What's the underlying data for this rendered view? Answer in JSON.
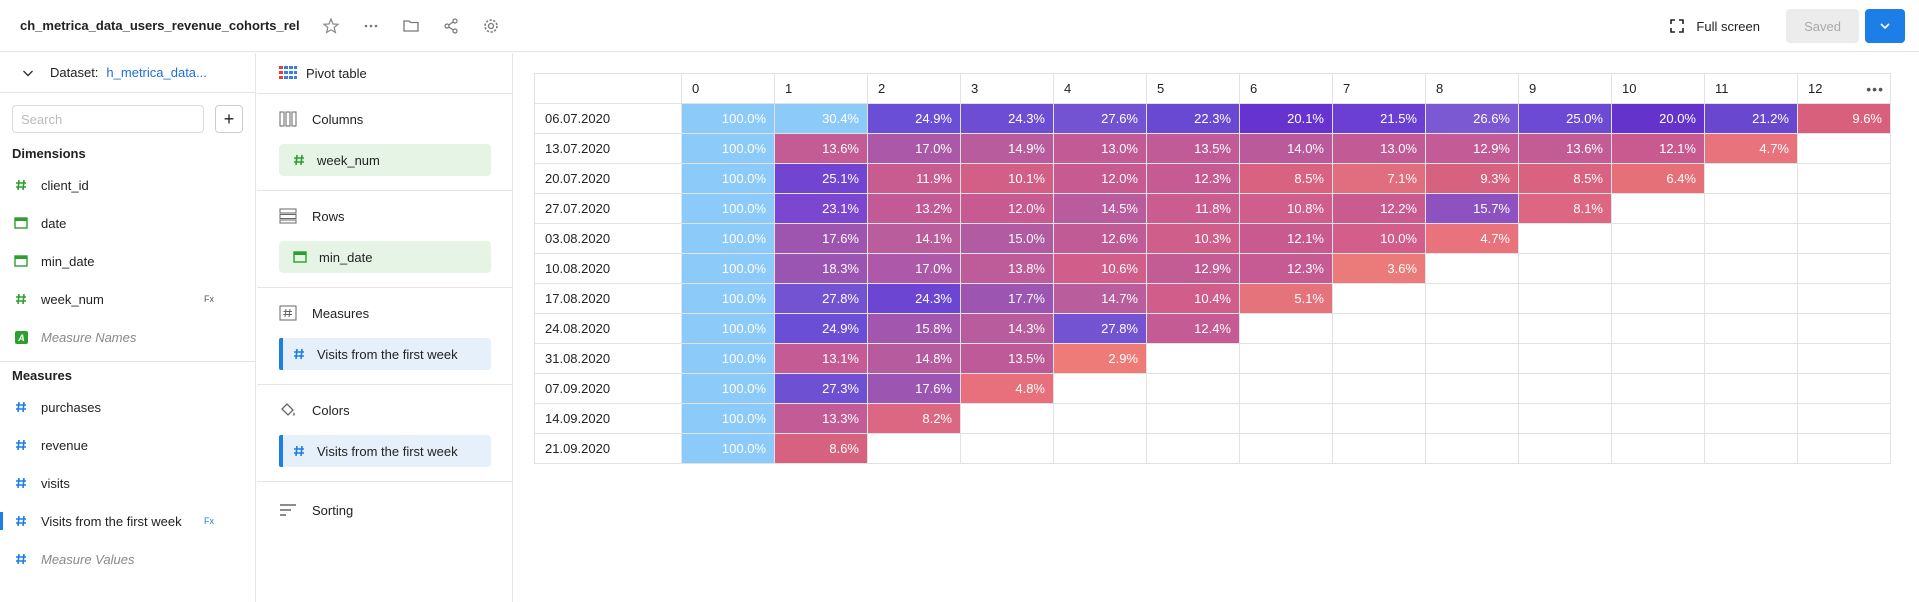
{
  "header": {
    "title": "ch_metrica_data_users_revenue_cohorts_rel",
    "fullscreen_label": "Full screen",
    "saved_label": "Saved"
  },
  "dataset": {
    "label": "Dataset:",
    "name": "h_metrica_data..."
  },
  "search": {
    "placeholder": "Search"
  },
  "dimensions": {
    "title": "Dimensions",
    "items": [
      {
        "label": "client_id",
        "icon": "hash-icon"
      },
      {
        "label": "date",
        "icon": "calendar-icon"
      },
      {
        "label": "min_date",
        "icon": "calendar-icon"
      },
      {
        "label": "week_num",
        "icon": "hash-icon",
        "formula": "Fx"
      },
      {
        "label": "Measure Names",
        "icon": "a-letter-icon"
      }
    ]
  },
  "measures": {
    "title": "Measures",
    "items": [
      {
        "label": "purchases",
        "icon": "hash-icon"
      },
      {
        "label": "revenue",
        "icon": "hash-icon"
      },
      {
        "label": "visits",
        "icon": "hash-icon"
      },
      {
        "label": "Visits from the first week",
        "icon": "hash-icon",
        "formula": "Fx"
      },
      {
        "label": "Measure Values",
        "icon": "hash-icon"
      }
    ]
  },
  "config": {
    "visualization": "Pivot table",
    "columns": {
      "title": "Columns",
      "chip": "week_num"
    },
    "rows": {
      "title": "Rows",
      "chip": "min_date"
    },
    "measures": {
      "title": "Measures",
      "chip": "Visits from the first week"
    },
    "colors": {
      "title": "Colors",
      "chip": "Visits from the first week"
    },
    "sorting": {
      "title": "Sorting"
    }
  },
  "colors": {
    "accent": "#1c7ee6",
    "dimension_green": "#2e9f2e",
    "measure_blue": "#1c7ee6"
  },
  "table": {
    "columns": [
      "0",
      "1",
      "2",
      "3",
      "4",
      "5",
      "6",
      "7",
      "8",
      "9",
      "10",
      "11",
      "12"
    ],
    "rows": [
      {
        "label": "06.07.2020",
        "values": [
          "100.0%",
          "30.4%",
          "24.9%",
          "24.3%",
          "27.6%",
          "22.3%",
          "20.1%",
          "21.5%",
          "26.6%",
          "25.0%",
          "20.0%",
          "21.2%",
          "9.6%"
        ]
      },
      {
        "label": "13.07.2020",
        "values": [
          "100.0%",
          "13.6%",
          "17.0%",
          "14.9%",
          "13.0%",
          "13.5%",
          "14.0%",
          "13.0%",
          "12.9%",
          "13.6%",
          "12.1%",
          "4.7%"
        ]
      },
      {
        "label": "20.07.2020",
        "values": [
          "100.0%",
          "25.1%",
          "11.9%",
          "10.1%",
          "12.0%",
          "12.3%",
          "8.5%",
          "7.1%",
          "9.3%",
          "8.5%",
          "6.4%"
        ]
      },
      {
        "label": "27.07.2020",
        "values": [
          "100.0%",
          "23.1%",
          "13.2%",
          "12.0%",
          "14.5%",
          "11.8%",
          "10.8%",
          "12.2%",
          "15.7%",
          "8.1%"
        ]
      },
      {
        "label": "03.08.2020",
        "values": [
          "100.0%",
          "17.6%",
          "14.1%",
          "15.0%",
          "12.6%",
          "10.3%",
          "12.1%",
          "10.0%",
          "4.7%"
        ]
      },
      {
        "label": "10.08.2020",
        "values": [
          "100.0%",
          "18.3%",
          "17.0%",
          "13.8%",
          "10.6%",
          "12.9%",
          "12.3%",
          "3.6%"
        ]
      },
      {
        "label": "17.08.2020",
        "values": [
          "100.0%",
          "27.8%",
          "24.3%",
          "17.7%",
          "14.7%",
          "10.4%",
          "5.1%"
        ]
      },
      {
        "label": "24.08.2020",
        "values": [
          "100.0%",
          "24.9%",
          "15.8%",
          "14.3%",
          "27.8%",
          "12.4%"
        ]
      },
      {
        "label": "31.08.2020",
        "values": [
          "100.0%",
          "13.1%",
          "14.8%",
          "13.5%",
          "2.9%"
        ]
      },
      {
        "label": "07.09.2020",
        "values": [
          "100.0%",
          "27.3%",
          "17.6%",
          "4.8%"
        ]
      },
      {
        "label": "14.09.2020",
        "values": [
          "100.0%",
          "13.3%",
          "8.2%"
        ]
      },
      {
        "label": "21.09.2020",
        "values": [
          "100.0%",
          "8.6%"
        ]
      }
    ],
    "cell_colors": [
      [
        "#8ccaf9",
        "#8ccaf9",
        "#6a4fd6",
        "#6d4dd4",
        "#7353d2",
        "#6a49d2",
        "#6633d0",
        "#6b3ed4",
        "#7b59d2",
        "#6d4ad4",
        "#6433cc",
        "#6a47cf",
        "#d8607c"
      ],
      [
        "#8ccaf9",
        "#c35c94",
        "#ac58a8",
        "#b85c9d",
        "#c25a96",
        "#c05b97",
        "#bb5a9b",
        "#c25a96",
        "#c35b96",
        "#c35c94",
        "#c85a90",
        "#e8737d"
      ],
      [
        "#8ccaf9",
        "#7145d2",
        "#c85c91",
        "#d35f87",
        "#c75a91",
        "#c55b92",
        "#da6281",
        "#e06e7e",
        "#d7627f",
        "#da6281",
        "#e57078"
      ],
      [
        "#8ccaf9",
        "#7b46d0",
        "#c25b95",
        "#c75a91",
        "#b85c9d",
        "#cb5c8f",
        "#cf5e8c",
        "#c95b8f",
        "#8e52c0",
        "#dd6683"
      ],
      [
        "#8ccaf9",
        "#9e55b0",
        "#b95d9c",
        "#b15ba2",
        "#c05b96",
        "#d05e8a",
        "#c95a8f",
        "#d25e89",
        "#e8737d"
      ],
      [
        "#8ccaf9",
        "#9a55b3",
        "#ad58a8",
        "#be5c99",
        "#d15e8a",
        "#c35b95",
        "#c65a92",
        "#eb7b7b"
      ],
      [
        "#8ccaf9",
        "#7353d2",
        "#6c46d2",
        "#9d55b2",
        "#b95d9c",
        "#d15e8a",
        "#e5737c"
      ],
      [
        "#8ccaf9",
        "#6a4fd6",
        "#a256ad",
        "#b85c9d",
        "#7353d2",
        "#c45b94"
      ],
      [
        "#8ccaf9",
        "#c45b94",
        "#b65b9e",
        "#be5a98",
        "#ef7b78"
      ],
      [
        "#8ccaf9",
        "#6e50d3",
        "#9d55b2",
        "#e7707c"
      ],
      [
        "#8ccaf9",
        "#c35b96",
        "#db6782"
      ],
      [
        "#8ccaf9",
        "#d7627f"
      ]
    ]
  }
}
